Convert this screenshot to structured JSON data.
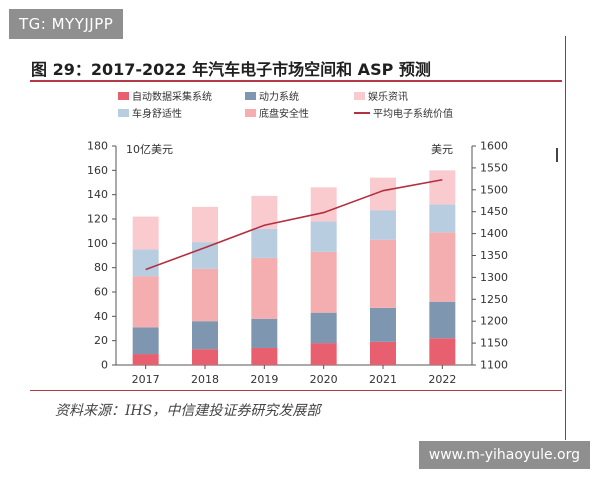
{
  "watermark_top": "TG: MYYJJPP",
  "watermark_bottom": "www.m-yihaoyule.org",
  "chart_data": {
    "type": "bar",
    "title": "图 29：2017-2022 年汽车电子市场空间和 ASP 预测",
    "source": "资料来源：IHS，中信建投证券研究发展部",
    "left_unit": "10亿美元",
    "right_unit": "美元",
    "categories": [
      "2017",
      "2018",
      "2019",
      "2020",
      "2021",
      "2022"
    ],
    "ylim": [
      0,
      180
    ],
    "yticks": [
      "0",
      "20",
      "40",
      "60",
      "80",
      "100",
      "120",
      "140",
      "160",
      "180"
    ],
    "y2lim": [
      1100,
      1600
    ],
    "y2ticks": [
      "1100",
      "1150",
      "1200",
      "1250",
      "1300",
      "1350",
      "1400",
      "1450",
      "1500",
      "1550",
      "1600"
    ],
    "stacked": true,
    "series": [
      {
        "name": "自动数据采集系统",
        "color": "#e8606f",
        "values": [
          9,
          13,
          14,
          18,
          19,
          22
        ]
      },
      {
        "name": "动力系统",
        "color": "#7f96b0",
        "values": [
          22,
          23,
          24,
          25,
          28,
          30
        ]
      },
      {
        "name": "底盘安全性",
        "color": "#f5aeb0",
        "values": [
          42,
          43,
          50,
          50,
          56,
          57
        ]
      },
      {
        "name": "车身舒适性",
        "color": "#b9cde0",
        "values": [
          22,
          22,
          24,
          25,
          24,
          23
        ]
      },
      {
        "name": "娱乐资讯",
        "color": "#f9cbcf",
        "values": [
          27,
          29,
          27,
          28,
          27,
          28
        ]
      }
    ],
    "line_series": {
      "name": "平均电子系统价值",
      "color": "#b3303f",
      "axis": "right",
      "values": [
        1318,
        1368,
        1419,
        1448,
        1498,
        1523
      ]
    },
    "legend": {
      "placement": "top",
      "items": [
        "自动数据采集系统",
        "动力系统",
        "娱乐资讯",
        "车身舒适性",
        "底盘安全性",
        "平均电子系统价值"
      ]
    },
    "grid": false
  }
}
